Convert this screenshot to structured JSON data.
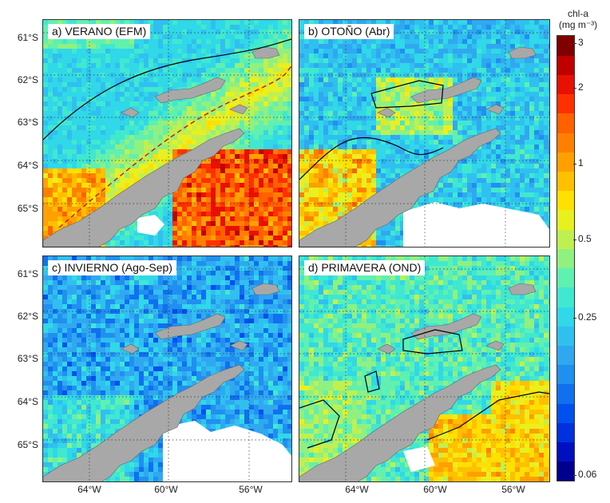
{
  "panels": [
    {
      "label": "a) VERANO (EFM)",
      "regime": "summer"
    },
    {
      "label": "b) OTOÑO (Abr)",
      "regime": "autumn"
    },
    {
      "label": "c) INVIERNO (Ago-Sep)",
      "regime": "winter"
    },
    {
      "label": "d) PRIMAVERA (OND)",
      "regime": "spring"
    }
  ],
  "axes": {
    "lat_ticks": [
      "61°S",
      "62°S",
      "63°S",
      "64°S",
      "65°S"
    ],
    "lon_ticks": [
      "64°W",
      "60°W",
      "56°W"
    ]
  },
  "colorbar": {
    "title_line1": "chl-a",
    "title_line2": "(mg m⁻³)",
    "ticks": [
      "3",
      "2",
      "1",
      "0.5",
      "0.25",
      "0.06"
    ],
    "colors": [
      "#00008f",
      "#0010c0",
      "#0030e0",
      "#0050f0",
      "#1070f0",
      "#2090f0",
      "#30a8f0",
      "#30c0f0",
      "#30d8e8",
      "#40e8d0",
      "#60f0b0",
      "#90f080",
      "#c0f050",
      "#e8f020",
      "#ffe000",
      "#ffc000",
      "#ffa000",
      "#ff8000",
      "#ff6000",
      "#ff3000",
      "#e81000",
      "#c00000",
      "#800000"
    ],
    "land_color": "#a8a8a8",
    "nodata_color": "#ffffff"
  }
}
